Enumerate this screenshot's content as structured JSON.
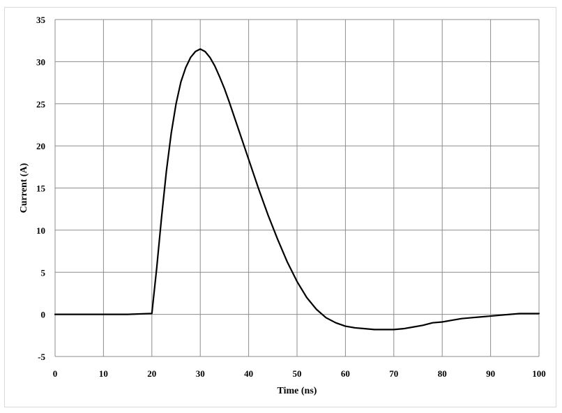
{
  "chart_data": {
    "type": "line",
    "title": "",
    "xlabel": "Time (ns)",
    "ylabel": "Current (A)",
    "xlim": [
      0,
      100
    ],
    "ylim": [
      -5,
      35
    ],
    "x_ticks": [
      0,
      10,
      20,
      30,
      40,
      50,
      60,
      70,
      80,
      90,
      100
    ],
    "y_ticks": [
      -5,
      0,
      5,
      10,
      15,
      20,
      25,
      30,
      35
    ],
    "grid": true,
    "legend": "none",
    "line_color": "#000000",
    "series": [
      {
        "x": [
          0,
          5,
          10,
          15,
          19.5,
          20,
          21,
          22,
          23,
          24,
          25,
          26,
          27,
          28,
          29,
          30,
          31,
          32,
          33,
          34,
          35,
          36,
          37,
          38,
          39,
          40,
          42,
          44,
          46,
          48,
          50,
          52,
          54,
          56,
          58,
          60,
          62,
          64,
          66,
          68,
          70,
          72,
          74,
          76,
          78,
          80,
          82,
          84,
          86,
          88,
          90,
          92,
          94,
          96,
          98,
          100
        ],
        "y": [
          0.0,
          0.0,
          0.0,
          0.0,
          0.1,
          0.1,
          5.5,
          11.5,
          17.0,
          21.5,
          25.0,
          27.6,
          29.3,
          30.5,
          31.2,
          31.5,
          31.2,
          30.5,
          29.5,
          28.2,
          26.8,
          25.2,
          23.5,
          21.8,
          20.1,
          18.4,
          15.0,
          11.8,
          8.9,
          6.2,
          3.9,
          2.0,
          0.6,
          -0.4,
          -1.0,
          -1.4,
          -1.6,
          -1.7,
          -1.8,
          -1.8,
          -1.8,
          -1.7,
          -1.5,
          -1.3,
          -1.0,
          -0.9,
          -0.7,
          -0.5,
          -0.4,
          -0.3,
          -0.2,
          -0.1,
          0.0,
          0.1,
          0.1,
          0.1
        ]
      }
    ]
  }
}
